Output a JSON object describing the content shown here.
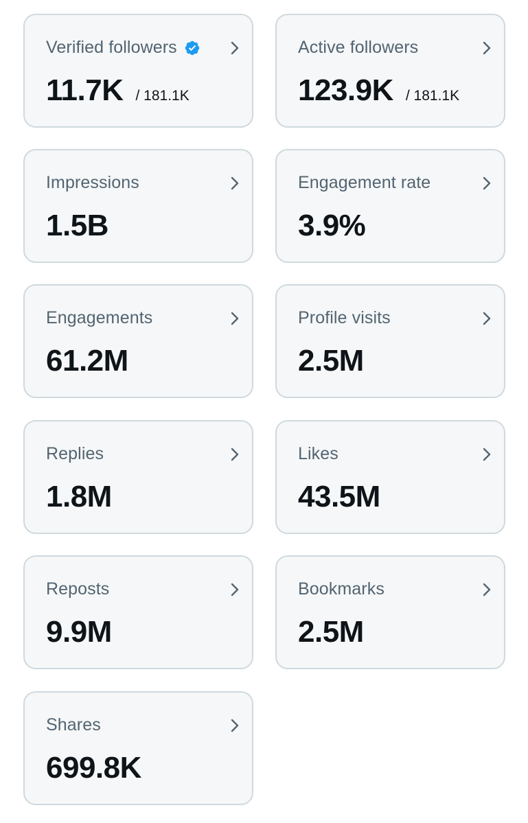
{
  "cards": [
    {
      "label": "Verified followers",
      "value": "11.7K",
      "total": "/ 181.1K",
      "verified_icon": "verified-badge-icon",
      "chevron_icon": "chevron-right-icon"
    },
    {
      "label": "Active followers",
      "value": "123.9K",
      "total": "/ 181.1K",
      "chevron_icon": "chevron-right-icon"
    },
    {
      "label": "Impressions",
      "value": "1.5B",
      "chevron_icon": "chevron-right-icon"
    },
    {
      "label": "Engagement rate",
      "value": "3.9%",
      "chevron_icon": "chevron-right-icon"
    },
    {
      "label": "Engagements",
      "value": "61.2M",
      "chevron_icon": "chevron-right-icon"
    },
    {
      "label": "Profile visits",
      "value": "2.5M",
      "chevron_icon": "chevron-right-icon"
    },
    {
      "label": "Replies",
      "value": "1.8M",
      "chevron_icon": "chevron-right-icon"
    },
    {
      "label": "Likes",
      "value": "43.5M",
      "chevron_icon": "chevron-right-icon"
    },
    {
      "label": "Reposts",
      "value": "9.9M",
      "chevron_icon": "chevron-right-icon"
    },
    {
      "label": "Bookmarks",
      "value": "2.5M",
      "chevron_icon": "chevron-right-icon"
    },
    {
      "label": "Shares",
      "value": "699.8K",
      "chevron_icon": "chevron-right-icon"
    }
  ],
  "colors": {
    "card_background": "#f5f7f8",
    "card_border": "#cfd9de",
    "label_text": "#536471",
    "value_text": "#0f1419",
    "verified_blue": "#1d9bf0"
  }
}
